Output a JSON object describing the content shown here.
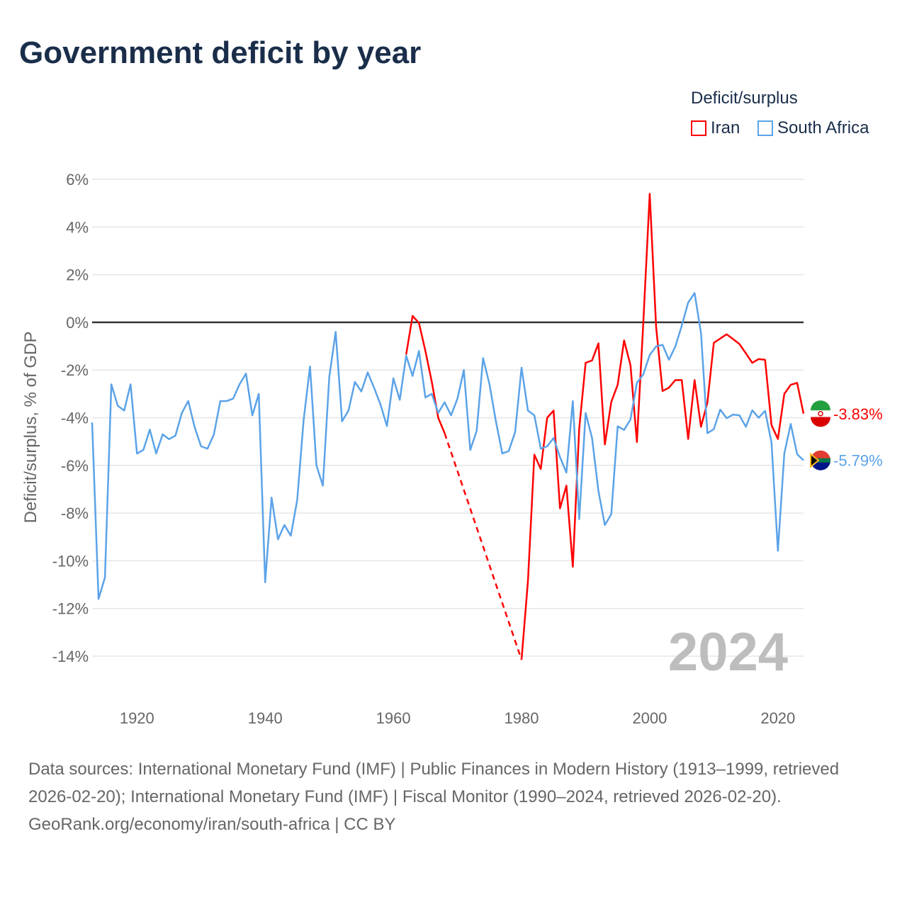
{
  "chart_data": {
    "type": "line",
    "title": "Government deficit by year",
    "ylabel": "Deficit/surplus, % of GDP",
    "xlabel": "",
    "xlim": [
      1913,
      2024
    ],
    "ylim": [
      -14,
      6
    ],
    "yticks": [
      6,
      4,
      2,
      0,
      -2,
      -4,
      -6,
      -8,
      -10,
      -12,
      -14
    ],
    "ytick_labels": [
      "6%",
      "4%",
      "2%",
      "0%",
      "-2%",
      "-4%",
      "-6%",
      "-8%",
      "-10%",
      "-12%",
      "-14%"
    ],
    "xticks": [
      1920,
      1940,
      1960,
      1980,
      2000,
      2020
    ],
    "xtick_labels": [
      "1920",
      "1940",
      "1960",
      "1980",
      "2000",
      "2020"
    ],
    "grid": true,
    "legend_title": "Deficit/surplus",
    "legend_position": "top-right",
    "year_label": "2024",
    "series": [
      {
        "name": "Iran",
        "color": "#ff0000",
        "start_year": 1962,
        "end_label": "-3.83%",
        "values": [
          -1.35,
          0.27,
          -0.03,
          -1.2,
          -2.5,
          -4.0,
          -4.65,
          null,
          null,
          null,
          null,
          null,
          null,
          null,
          null,
          null,
          null,
          null,
          -14.15,
          -10.85,
          -5.55,
          -6.15,
          -4.0,
          -3.7,
          -7.8,
          -6.85,
          -10.25,
          -4.45,
          -1.7,
          -1.6,
          -0.88,
          -5.12,
          -3.34,
          -2.62,
          -0.76,
          -1.8,
          -5.02,
          0.0,
          5.39,
          -0.2,
          -2.88,
          -2.74,
          -2.42,
          -2.42,
          -4.89,
          -2.42,
          -4.38,
          -3.36,
          -0.86,
          -0.68,
          -0.5,
          -0.7,
          -0.91,
          -1.3,
          -1.7,
          -1.54,
          -1.57,
          -4.31,
          -4.89,
          -3.0,
          -2.62,
          -2.54,
          -3.83
        ]
      },
      {
        "name": "South Africa",
        "color": "#5ba3e8",
        "start_year": 1913,
        "end_label": "-5.79%",
        "values": [
          -4.2,
          -11.6,
          -10.7,
          -2.6,
          -3.5,
          -3.7,
          -2.6,
          -5.5,
          -5.35,
          -4.5,
          -5.5,
          -4.7,
          -4.9,
          -4.75,
          -3.8,
          -3.3,
          -4.4,
          -5.2,
          -5.3,
          -4.7,
          -3.3,
          -3.3,
          -3.2,
          -2.6,
          -2.15,
          -3.9,
          -3.0,
          -10.9,
          -7.35,
          -9.1,
          -8.5,
          -8.95,
          -7.45,
          -4.1,
          -1.85,
          -6.0,
          -6.85,
          -2.3,
          -0.4,
          -4.15,
          -3.7,
          -2.5,
          -2.9,
          -2.1,
          -2.75,
          -3.45,
          -4.35,
          -2.35,
          -3.25,
          -1.4,
          -2.25,
          -1.2,
          -3.15,
          -3.0,
          -3.8,
          -3.35,
          -3.9,
          -3.2,
          -2.0,
          -5.35,
          -4.55,
          -1.5,
          -2.6,
          -4.15,
          -5.5,
          -5.4,
          -4.6,
          -1.9,
          -3.7,
          -3.9,
          -5.3,
          -5.2,
          -4.85,
          -5.65,
          -6.3,
          -3.3,
          -8.25,
          -3.8,
          -4.85,
          -7.08,
          -8.5,
          -8.05,
          -4.36,
          -4.51,
          -4.07,
          -2.54,
          -2.18,
          -1.37,
          -1.01,
          -0.94,
          -1.57,
          -1.01,
          -0.14,
          0.83,
          1.23,
          -0.45,
          -4.65,
          -4.48,
          -3.66,
          -4.02,
          -3.87,
          -3.9,
          -4.38,
          -3.69,
          -4.0,
          -3.71,
          -5.04,
          -9.58,
          -5.5,
          -4.26,
          -5.53,
          -5.79
        ]
      }
    ]
  },
  "footer": {
    "sources": "Data sources: International Monetary Fund (IMF) | Public Finances in Modern History (1913–1999, retrieved 2026-02-20); International Monetary Fund (IMF) | Fiscal Monitor (1990–2024, retrieved 2026-02-20).",
    "credit": "GeoRank.org/economy/iran/south-africa | CC BY"
  }
}
